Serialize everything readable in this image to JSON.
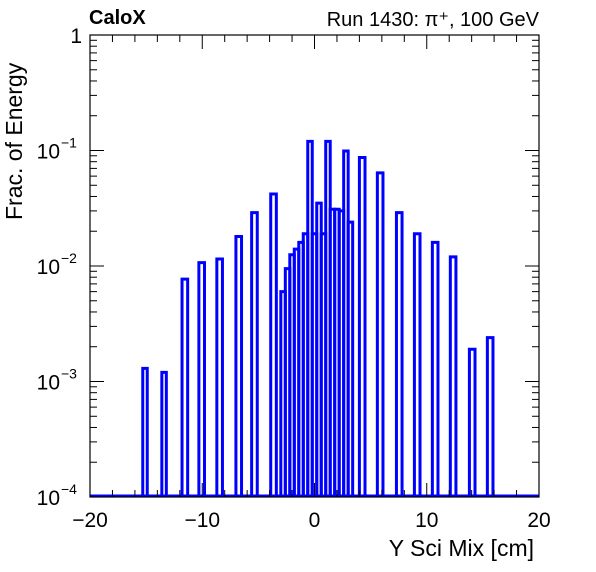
{
  "header": {
    "experiment": "CaloX",
    "run_info": "Run 1430:   π⁺, 100 GeV"
  },
  "colors": {
    "histogram": "#0000ff",
    "axes": "#000000"
  },
  "chart_data": {
    "type": "histogram",
    "xlabel": "Y Sci Mix [cm]",
    "ylabel": "Frac. of Energy",
    "xlim": [
      -20,
      20
    ],
    "ylim": [
      0.0001,
      1
    ],
    "yscale": "log",
    "grid": false,
    "legend": "none",
    "x_ticks": [
      -20,
      -10,
      0,
      10,
      20
    ],
    "x_tick_labels": [
      "−20",
      "−10",
      "0",
      "10",
      "20"
    ],
    "y_ticks": [
      0.0001,
      0.001,
      0.01,
      0.1,
      1
    ],
    "y_tick_labels": [
      {
        "base": "10",
        "exp": "−4"
      },
      {
        "base": "10",
        "exp": "−3"
      },
      {
        "base": "10",
        "exp": "−2"
      },
      {
        "base": "10",
        "exp": "−1"
      },
      {
        "base": "1",
        "exp": ""
      }
    ],
    "bins": [
      {
        "x0": -15.3,
        "x1": -14.9,
        "y": 0.0013
      },
      {
        "x0": -13.6,
        "x1": -13.2,
        "y": 0.0012
      },
      {
        "x0": -11.8,
        "x1": -11.3,
        "y": 0.0077
      },
      {
        "x0": -10.3,
        "x1": -9.8,
        "y": 0.0107
      },
      {
        "x0": -8.7,
        "x1": -8.2,
        "y": 0.0115
      },
      {
        "x0": -7.0,
        "x1": -6.5,
        "y": 0.018
      },
      {
        "x0": -5.6,
        "x1": -5.1,
        "y": 0.029
      },
      {
        "x0": -3.9,
        "x1": -3.4,
        "y": 0.042
      },
      {
        "x0": -3.0,
        "x1": -2.6,
        "y": 0.006
      },
      {
        "x0": -2.6,
        "x1": -2.2,
        "y": 0.0095
      },
      {
        "x0": -2.2,
        "x1": -1.8,
        "y": 0.0125
      },
      {
        "x0": -1.8,
        "x1": -1.4,
        "y": 0.014
      },
      {
        "x0": -1.4,
        "x1": -1.0,
        "y": 0.016
      },
      {
        "x0": -1.0,
        "x1": -0.6,
        "y": 0.019
      },
      {
        "x0": -0.6,
        "x1": -0.2,
        "y": 0.12
      },
      {
        "x0": -0.2,
        "x1": 0.2,
        "y": 0.019
      },
      {
        "x0": 0.2,
        "x1": 0.6,
        "y": 0.035
      },
      {
        "x0": 0.6,
        "x1": 1.0,
        "y": 0.019
      },
      {
        "x0": 1.0,
        "x1": 1.4,
        "y": 0.12
      },
      {
        "x0": 1.4,
        "x1": 1.8,
        "y": 0.031
      },
      {
        "x0": 1.8,
        "x1": 2.2,
        "y": 0.031
      },
      {
        "x0": 2.2,
        "x1": 2.6,
        "y": 0.03
      },
      {
        "x0": 2.6,
        "x1": 3.0,
        "y": 0.099
      },
      {
        "x0": 3.0,
        "x1": 3.4,
        "y": 0.024
      },
      {
        "x0": 4.0,
        "x1": 4.5,
        "y": 0.087
      },
      {
        "x0": 5.6,
        "x1": 6.1,
        "y": 0.064
      },
      {
        "x0": 7.3,
        "x1": 7.8,
        "y": 0.029
      },
      {
        "x0": 8.9,
        "x1": 9.4,
        "y": 0.019
      },
      {
        "x0": 10.5,
        "x1": 11.0,
        "y": 0.016
      },
      {
        "x0": 12.1,
        "x1": 12.6,
        "y": 0.012
      },
      {
        "x0": 13.8,
        "x1": 14.3,
        "y": 0.0019
      },
      {
        "x0": 15.4,
        "x1": 15.9,
        "y": 0.0024
      }
    ]
  }
}
